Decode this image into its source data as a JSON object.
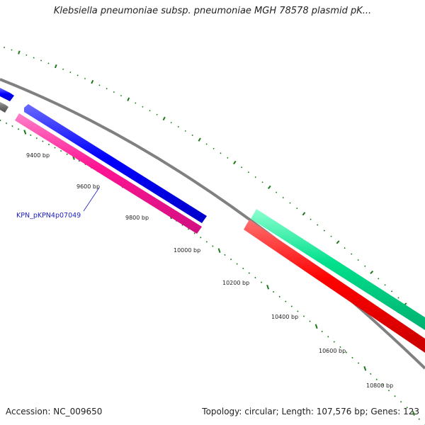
{
  "title": "Klebsiella pneumoniae subsp. pneumoniae MGH 78578 plasmid pK...",
  "footer": {
    "accession": "Accession: NC_009650",
    "summary": "Topology: circular; Length: 107,576 bp; Genes: 123"
  },
  "colors": {
    "backbone": "#808080",
    "ticks": "#1a7a1a",
    "gene_label": "#2020c0"
  },
  "ticks": [
    {
      "bp": 9400,
      "label": "9400 bp"
    },
    {
      "bp": 9600,
      "label": "9600 bp"
    },
    {
      "bp": 9800,
      "label": "9800 bp"
    },
    {
      "bp": 10000,
      "label": "10000 bp"
    },
    {
      "bp": 10200,
      "label": "10200 bp"
    },
    {
      "bp": 10400,
      "label": "10400 bp"
    },
    {
      "bp": 10600,
      "label": "10600 bp"
    },
    {
      "bp": 10800,
      "label": "10800 bp"
    }
  ],
  "features": [
    {
      "name": "blue-gene-upper-left",
      "color": "#0000ff",
      "track": "blue-upper-left"
    },
    {
      "name": "gray-gene-upper-left",
      "color": "#707070",
      "track": "gray-upper-left"
    },
    {
      "name": "blue-gene",
      "color": "#0000ff",
      "track": "blue-main"
    },
    {
      "name": "magenta-gene",
      "color": "#ff1493",
      "track": "magenta-main"
    },
    {
      "name": "green-gene",
      "color": "#00e08c",
      "track": "green-right"
    },
    {
      "name": "red-gene",
      "color": "#ff0000",
      "track": "red-right"
    }
  ],
  "gene_label": {
    "text": "KPN_pKPN4p07049"
  }
}
